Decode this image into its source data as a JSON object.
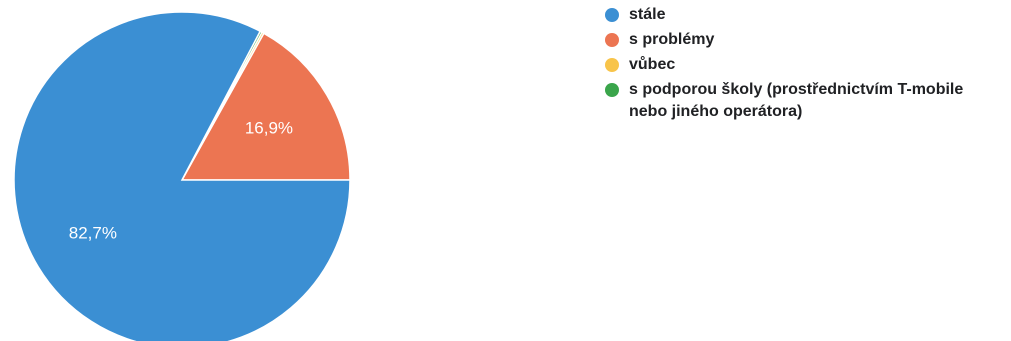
{
  "chart_data": {
    "type": "pie",
    "slices": [
      {
        "label": "stále",
        "value": 82.7,
        "display": "82,7%",
        "color": "#3b8fd3"
      },
      {
        "label": "s problémy",
        "value": 16.9,
        "display": "16,9%",
        "color": "#ec7552"
      },
      {
        "label": "vůbec",
        "value": 0.2,
        "display": "",
        "color": "#f8c44a"
      },
      {
        "label": "s podporou školy (prostřednictvím T-mobile nebo jiného operátora)",
        "value": 0.2,
        "display": "",
        "color": "#3aa54b"
      }
    ],
    "legend_position": "right",
    "title": ""
  }
}
